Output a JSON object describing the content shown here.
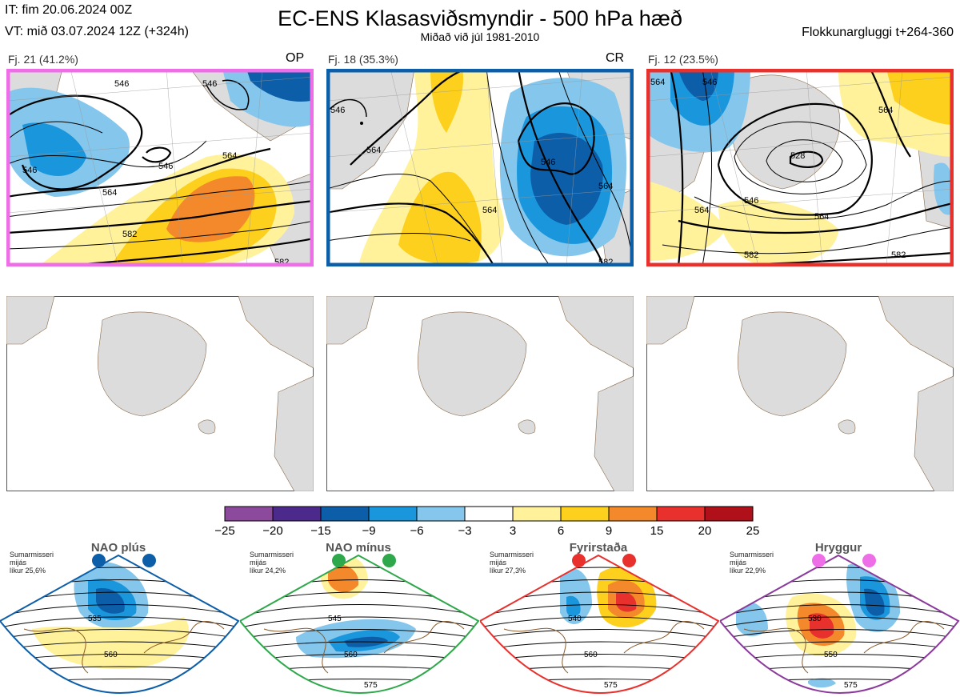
{
  "header": {
    "it_line": "IT: fim 20.06.2024 00Z",
    "vt_line": "VT: mið 03.07.2024 12Z  (+324h)",
    "title": "EC-ENS Klasasviðsmyndir - 500 hPa hæð",
    "subtitle": "Miðað við júl 1981-2010",
    "window": "Flokkunargluggi t+264-360"
  },
  "clusters": [
    {
      "label": "Fj. 21 (41.2%)",
      "tag": "OP",
      "border_color": "#ee6ee8",
      "contours": [
        {
          "label": "546"
        },
        {
          "label": "546"
        },
        {
          "label": "546"
        },
        {
          "label": "546"
        },
        {
          "label": "564"
        },
        {
          "label": "564"
        },
        {
          "label": "582"
        },
        {
          "label": "582"
        }
      ]
    },
    {
      "label": "Fj. 18 (35.3%)",
      "tag": "CR",
      "border_color": "#0d5ea8",
      "contours": [
        {
          "label": "546"
        },
        {
          "label": "564"
        },
        {
          "label": "564"
        },
        {
          "label": "546"
        },
        {
          "label": "564"
        },
        {
          "label": "582"
        }
      ]
    },
    {
      "label": "Fj. 12 (23.5%)",
      "tag": "",
      "border_color": "#e8302c",
      "contours": [
        {
          "label": "564"
        },
        {
          "label": "546"
        },
        {
          "label": "528"
        },
        {
          "label": "546"
        },
        {
          "label": "564"
        },
        {
          "label": "564"
        },
        {
          "label": "582"
        },
        {
          "label": "582"
        },
        {
          "label": "564"
        }
      ]
    }
  ],
  "colorbar": {
    "colors": [
      "#8b4a9c",
      "#4b2a8c",
      "#0d5ea8",
      "#1a96dc",
      "#84c6ec",
      "#ffffff",
      "#fff29a",
      "#fcd01c",
      "#f4892c",
      "#e8302c",
      "#b0101a"
    ],
    "ticks": [
      "−25",
      "−20",
      "−15",
      "−9",
      "−6",
      "−3",
      "3",
      "6",
      "9",
      "15",
      "20",
      "25"
    ]
  },
  "regimes": [
    {
      "name": "NAO plús",
      "info": [
        "Sumarmisseri",
        "mijás",
        "líkur 25,6%"
      ],
      "border_color": "#0d5ea8",
      "dot_color": "#0d5ea8",
      "labels": [
        "535",
        "560"
      ]
    },
    {
      "name": "NAO mínus",
      "info": [
        "Sumarmisseri",
        "mijás",
        "líkur 24,2%"
      ],
      "border_color": "#2ea84a",
      "dot_color": "#2ea84a",
      "labels": [
        "545",
        "560",
        "575"
      ]
    },
    {
      "name": "Fyrirstaða",
      "info": [
        "Sumarmisseri",
        "mijás",
        "líkur 27,3%"
      ],
      "border_color": "#e8302c",
      "dot_color": "#e8302c",
      "labels": [
        "540",
        "560",
        "575"
      ]
    },
    {
      "name": "Hryggur",
      "info": [
        "Sumarmisseri",
        "mijás",
        "líkur 22,9%"
      ],
      "border_color": "#8b3a9c",
      "dot_color": "#ee6ee8",
      "labels": [
        "530",
        "550",
        "575"
      ]
    }
  ]
}
